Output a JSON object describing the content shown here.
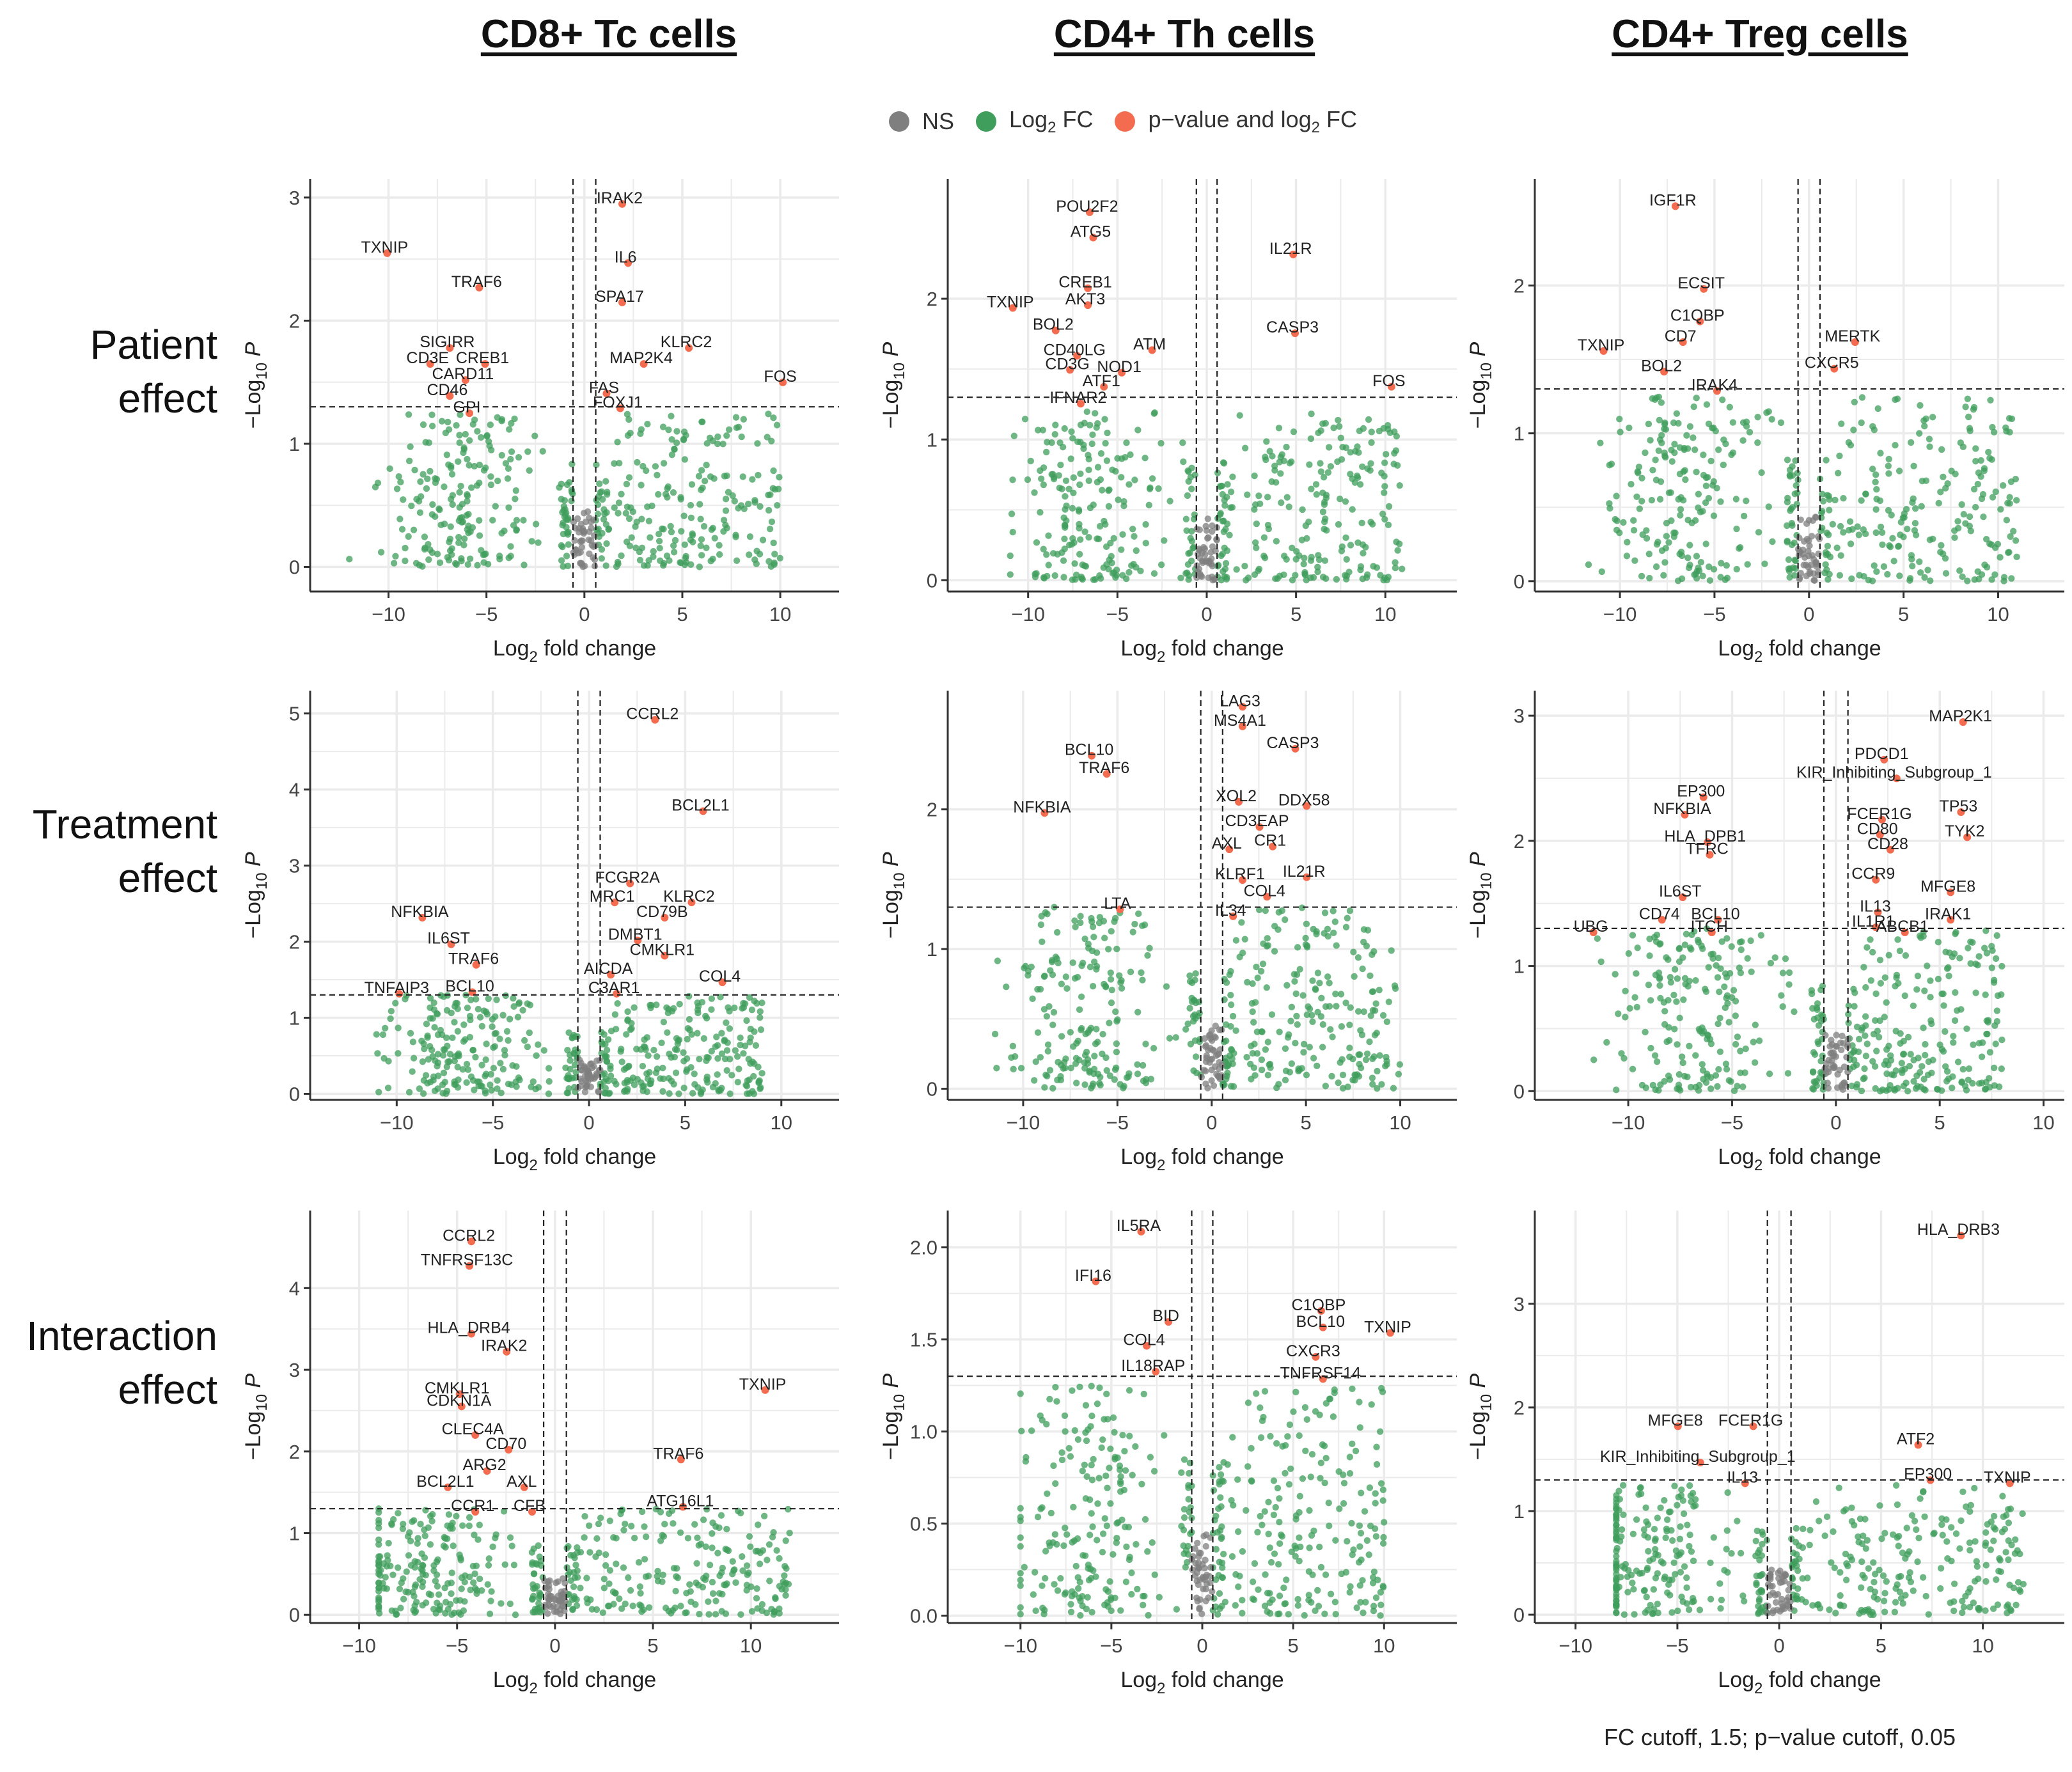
{
  "column_titles": [
    "CD8+ Tc cells",
    "CD4+ Th cells",
    "CD4+ Treg cells"
  ],
  "row_labels": [
    [
      "Patient",
      "effect"
    ],
    [
      "Treatment",
      "effect"
    ],
    [
      "Interaction",
      "effect"
    ]
  ],
  "legend": [
    {
      "label": "NS",
      "color": "#7f7f7f"
    },
    {
      "label": "Log2 FC",
      "color": "#3f9e5c"
    },
    {
      "label": "p-value and log2 FC",
      "color": "#f36c4f"
    }
  ],
  "legend_text": {
    "ns": "NS",
    "log": "Log",
    "two": "2",
    "fc": " FC",
    "pv": "p−value and log",
    "pv_fc": " FC"
  },
  "caption": "FC cutoff, 1.5; p−value cutoff, 0.05",
  "colors": {
    "ns": "#7f7f7f",
    "fc": "#3f9e5c",
    "sig": "#f36c4f",
    "grid": "#ebebeb",
    "axis": "#333333"
  },
  "chart_data": [
    {
      "type": "scatter",
      "panel": "CD8+ Tc cells - Patient effect",
      "xlabel": "Log2 fold change",
      "ylabel": "-Log10 P",
      "xlim": [
        -14,
        13
      ],
      "ylim": [
        -0.2,
        3.15
      ],
      "xticks": [
        -10,
        -5,
        0,
        5,
        10
      ],
      "yticks": [
        0,
        1,
        2,
        3
      ],
      "fc_cutoff": 0.58,
      "p_threshold": 1.3,
      "seed": 11,
      "bg_ymax": 1.25,
      "bg_xrange": [
        -12,
        10
      ],
      "labels": [
        {
          "gene": "IRAK2",
          "x": 1.8,
          "y": 3.0
        },
        {
          "gene": "TXNIP",
          "x": -10.2,
          "y": 2.6
        },
        {
          "gene": "IL6",
          "x": 2.1,
          "y": 2.52
        },
        {
          "gene": "TRAF6",
          "x": -5.5,
          "y": 2.32
        },
        {
          "gene": "SPA17",
          "x": 1.8,
          "y": 2.2
        },
        {
          "gene": "SIGIRR",
          "x": -7.0,
          "y": 1.83
        },
        {
          "gene": "KLRC2",
          "x": 5.2,
          "y": 1.83
        },
        {
          "gene": "CD3E",
          "x": -8.0,
          "y": 1.7
        },
        {
          "gene": "CREB1",
          "x": -5.2,
          "y": 1.7
        },
        {
          "gene": "MAP2K4",
          "x": 2.9,
          "y": 1.7
        },
        {
          "gene": "CARD11",
          "x": -6.2,
          "y": 1.57
        },
        {
          "gene": "FOS",
          "x": 10.0,
          "y": 1.55
        },
        {
          "gene": "CD46",
          "x": -7.0,
          "y": 1.44
        },
        {
          "gene": "FAS",
          "x": 1.0,
          "y": 1.46
        },
        {
          "gene": "FOXJ1",
          "x": 1.7,
          "y": 1.34
        },
        {
          "gene": "GPI",
          "x": -6.0,
          "y": 1.3
        }
      ]
    },
    {
      "type": "scatter",
      "panel": "CD4+ Th cells - Patient effect",
      "xlabel": "Log2 fold change",
      "ylabel": "-Log10 P",
      "xlim": [
        -14.5,
        14
      ],
      "ylim": [
        -0.08,
        2.85
      ],
      "xticks": [
        -10,
        -5,
        0,
        5,
        10
      ],
      "yticks": [
        0,
        1,
        2
      ],
      "fc_cutoff": 0.58,
      "p_threshold": 1.3,
      "seed": 23,
      "bg_ymax": 1.2,
      "bg_xrange": [
        -11,
        11
      ],
      "labels": [
        {
          "gene": "POU2F2",
          "x": -6.7,
          "y": 2.66
        },
        {
          "gene": "ATG5",
          "x": -6.5,
          "y": 2.48
        },
        {
          "gene": "IL21R",
          "x": 4.7,
          "y": 2.36
        },
        {
          "gene": "CREB1",
          "x": -6.8,
          "y": 2.12
        },
        {
          "gene": "AKT3",
          "x": -6.8,
          "y": 2.0
        },
        {
          "gene": "TXNIP",
          "x": -11.0,
          "y": 1.98
        },
        {
          "gene": "BOL2",
          "x": -8.6,
          "y": 1.82
        },
        {
          "gene": "CASP3",
          "x": 4.8,
          "y": 1.8
        },
        {
          "gene": "ATM",
          "x": -3.2,
          "y": 1.68
        },
        {
          "gene": "CD40LG",
          "x": -7.4,
          "y": 1.64
        },
        {
          "gene": "CD3G",
          "x": -7.8,
          "y": 1.54
        },
        {
          "gene": "NOD1",
          "x": -4.9,
          "y": 1.52
        },
        {
          "gene": "ATF1",
          "x": -5.9,
          "y": 1.42
        },
        {
          "gene": "FOS",
          "x": 10.2,
          "y": 1.42
        },
        {
          "gene": "IFNAR2",
          "x": -7.2,
          "y": 1.3
        }
      ]
    },
    {
      "type": "scatter",
      "panel": "CD4+ Treg cells - Patient effect",
      "xlabel": "Log2 fold change",
      "ylabel": "-Log10 P",
      "xlim": [
        -14.5,
        13.5
      ],
      "ylim": [
        -0.07,
        2.72
      ],
      "xticks": [
        -10,
        -5,
        0,
        5,
        10
      ],
      "yticks": [
        0,
        1,
        2
      ],
      "fc_cutoff": 0.58,
      "p_threshold": 1.3,
      "seed": 37,
      "bg_ymax": 1.25,
      "bg_xrange": [
        -12,
        11
      ],
      "labels": [
        {
          "gene": "IGF1R",
          "x": -7.2,
          "y": 2.58
        },
        {
          "gene": "ECSIT",
          "x": -5.7,
          "y": 2.02
        },
        {
          "gene": "C1QBP",
          "x": -5.9,
          "y": 1.8
        },
        {
          "gene": "CD7",
          "x": -6.8,
          "y": 1.66
        },
        {
          "gene": "TXNIP",
          "x": -11.0,
          "y": 1.6
        },
        {
          "gene": "MERTK",
          "x": 2.3,
          "y": 1.66
        },
        {
          "gene": "BOL2",
          "x": -7.8,
          "y": 1.46
        },
        {
          "gene": "CXCR5",
          "x": 1.2,
          "y": 1.48
        },
        {
          "gene": "IRAK4",
          "x": -5.0,
          "y": 1.33
        }
      ]
    },
    {
      "type": "scatter",
      "panel": "CD8+ Tc cells - Treatment effect",
      "xlabel": "Log2 fold change",
      "ylabel": "-Log10 P",
      "xlim": [
        -14.5,
        13
      ],
      "ylim": [
        -0.08,
        5.3
      ],
      "xticks": [
        -10,
        -5,
        0,
        5,
        10
      ],
      "yticks": [
        0,
        1,
        2,
        3,
        4,
        5
      ],
      "fc_cutoff": 0.58,
      "p_threshold": 1.3,
      "seed": 41,
      "bg_ymax": 1.3,
      "bg_xrange": [
        -12,
        9
      ],
      "labels": [
        {
          "gene": "CCRL2",
          "x": 3.3,
          "y": 5.0
        },
        {
          "gene": "BCL2L1",
          "x": 5.8,
          "y": 3.8
        },
        {
          "gene": "FCGR2A",
          "x": 2.0,
          "y": 2.85
        },
        {
          "gene": "MRC1",
          "x": 1.2,
          "y": 2.6
        },
        {
          "gene": "KLRC2",
          "x": 5.2,
          "y": 2.6
        },
        {
          "gene": "CD79B",
          "x": 3.8,
          "y": 2.4
        },
        {
          "gene": "NFKBIA",
          "x": -8.8,
          "y": 2.4
        },
        {
          "gene": "IL6ST",
          "x": -7.3,
          "y": 2.05
        },
        {
          "gene": "DMBT1",
          "x": 2.4,
          "y": 2.1
        },
        {
          "gene": "CMKLR1",
          "x": 3.8,
          "y": 1.9
        },
        {
          "gene": "TRAF6",
          "x": -6.0,
          "y": 1.78
        },
        {
          "gene": "AICDA",
          "x": 1.0,
          "y": 1.65
        },
        {
          "gene": "COL4",
          "x": 6.8,
          "y": 1.55
        },
        {
          "gene": "TNFAIP3",
          "x": -10.0,
          "y": 1.4
        },
        {
          "gene": "BCL10",
          "x": -6.2,
          "y": 1.42
        },
        {
          "gene": "C3AR1",
          "x": 1.3,
          "y": 1.4
        }
      ]
    },
    {
      "type": "scatter",
      "panel": "CD4+ Th cells - Treatment effect",
      "xlabel": "Log2 fold change",
      "ylabel": "-Log10 P",
      "xlim": [
        -14,
        13
      ],
      "ylim": [
        -0.08,
        2.85
      ],
      "xticks": [
        -10,
        -5,
        0,
        5,
        10
      ],
      "yticks": [
        0,
        1,
        2
      ],
      "fc_cutoff": 0.58,
      "p_threshold": 1.3,
      "seed": 53,
      "bg_ymax": 1.3,
      "bg_xrange": [
        -12,
        10
      ],
      "labels": [
        {
          "gene": "LAG3",
          "x": 1.5,
          "y": 2.78
        },
        {
          "gene": "MS4A1",
          "x": 1.5,
          "y": 2.64
        },
        {
          "gene": "CASP3",
          "x": 4.3,
          "y": 2.48
        },
        {
          "gene": "BCL10",
          "x": -6.5,
          "y": 2.43
        },
        {
          "gene": "TRAF6",
          "x": -5.7,
          "y": 2.3
        },
        {
          "gene": "XOL2",
          "x": 1.3,
          "y": 2.1
        },
        {
          "gene": "DDX58",
          "x": 4.9,
          "y": 2.07
        },
        {
          "gene": "NFKBIA",
          "x": -9.0,
          "y": 2.02
        },
        {
          "gene": "CD3EAP",
          "x": 2.4,
          "y": 1.92
        },
        {
          "gene": "AXL",
          "x": 0.8,
          "y": 1.76
        },
        {
          "gene": "CR1",
          "x": 3.1,
          "y": 1.78
        },
        {
          "gene": "KLRF1",
          "x": 1.5,
          "y": 1.54
        },
        {
          "gene": "IL21R",
          "x": 4.9,
          "y": 1.56
        },
        {
          "gene": "COL4",
          "x": 2.8,
          "y": 1.42
        },
        {
          "gene": "LTA",
          "x": -5.0,
          "y": 1.33
        },
        {
          "gene": "IL34",
          "x": 1.0,
          "y": 1.28
        }
      ]
    },
    {
      "type": "scatter",
      "panel": "CD4+ Treg cells - Treatment effect",
      "xlabel": "Log2 fold change",
      "ylabel": "-Log10 P",
      "xlim": [
        -14.5,
        11
      ],
      "ylim": [
        -0.07,
        3.2
      ],
      "xticks": [
        -10,
        -5,
        0,
        5,
        10
      ],
      "yticks": [
        0,
        1,
        2,
        3
      ],
      "fc_cutoff": 0.58,
      "p_threshold": 1.3,
      "seed": 67,
      "bg_ymax": 1.3,
      "bg_xrange": [
        -12,
        8
      ],
      "labels": [
        {
          "gene": "MAP2K1",
          "x": 6.0,
          "y": 3.0
        },
        {
          "gene": "PDCD1",
          "x": 2.2,
          "y": 2.7
        },
        {
          "gene": "KIR_Inhibiting_Subgroup_1",
          "x": 2.8,
          "y": 2.55
        },
        {
          "gene": "EP300",
          "x": -6.5,
          "y": 2.4
        },
        {
          "gene": "TP53",
          "x": 5.9,
          "y": 2.28
        },
        {
          "gene": "NFKBIA",
          "x": -7.4,
          "y": 2.26
        },
        {
          "gene": "FCER1G",
          "x": 2.1,
          "y": 2.22
        },
        {
          "gene": "CD80",
          "x": 2.0,
          "y": 2.1
        },
        {
          "gene": "TYK2",
          "x": 6.2,
          "y": 2.08
        },
        {
          "gene": "HLA_DPB1",
          "x": -6.3,
          "y": 2.04
        },
        {
          "gene": "CD28",
          "x": 2.5,
          "y": 1.98
        },
        {
          "gene": "TFRC",
          "x": -6.2,
          "y": 1.94
        },
        {
          "gene": "CCR9",
          "x": 1.8,
          "y": 1.74
        },
        {
          "gene": "MFGE8",
          "x": 5.4,
          "y": 1.64
        },
        {
          "gene": "IL6ST",
          "x": -7.5,
          "y": 1.6
        },
        {
          "gene": "IL13",
          "x": 1.9,
          "y": 1.48
        },
        {
          "gene": "CD74",
          "x": -8.5,
          "y": 1.42
        },
        {
          "gene": "BCL10",
          "x": -5.8,
          "y": 1.42
        },
        {
          "gene": "IRAK1",
          "x": 5.4,
          "y": 1.42
        },
        {
          "gene": "IL1R1",
          "x": 1.8,
          "y": 1.36
        },
        {
          "gene": "UBG",
          "x": -11.8,
          "y": 1.32
        },
        {
          "gene": "ITCH",
          "x": -6.1,
          "y": 1.32
        },
        {
          "gene": "ABCB1",
          "x": 3.2,
          "y": 1.32
        }
      ]
    },
    {
      "type": "scatter",
      "panel": "CD8+ Tc cells - Interaction effect",
      "xlabel": "Log2 fold change",
      "ylabel": "-Log10 P",
      "xlim": [
        -12.5,
        14.5
      ],
      "ylim": [
        -0.1,
        4.95
      ],
      "xticks": [
        -10,
        -5,
        0,
        5,
        10
      ],
      "yticks": [
        0,
        1,
        2,
        3,
        4
      ],
      "fc_cutoff": 0.58,
      "p_threshold": 1.3,
      "seed": 79,
      "bg_ymax": 1.3,
      "bg_xrange": [
        -9,
        12
      ],
      "labels": [
        {
          "gene": "CCRL2",
          "x": -4.4,
          "y": 4.65
        },
        {
          "gene": "TNFRSF13C",
          "x": -4.5,
          "y": 4.35
        },
        {
          "gene": "HLA_DRB4",
          "x": -4.4,
          "y": 3.52
        },
        {
          "gene": "IRAK2",
          "x": -2.6,
          "y": 3.3
        },
        {
          "gene": "TXNIP",
          "x": 10.6,
          "y": 2.83
        },
        {
          "gene": "CMKLR1",
          "x": -5.0,
          "y": 2.78
        },
        {
          "gene": "CDKN1A",
          "x": -4.9,
          "y": 2.63
        },
        {
          "gene": "CLEC4A",
          "x": -4.2,
          "y": 2.28
        },
        {
          "gene": "CD70",
          "x": -2.5,
          "y": 2.1
        },
        {
          "gene": "TRAF6",
          "x": 6.3,
          "y": 1.98
        },
        {
          "gene": "ARG2",
          "x": -3.6,
          "y": 1.84
        },
        {
          "gene": "BCL2L1",
          "x": -5.6,
          "y": 1.64
        },
        {
          "gene": "AXL",
          "x": -1.7,
          "y": 1.64
        },
        {
          "gene": "ATG16L1",
          "x": 6.4,
          "y": 1.4
        },
        {
          "gene": "CCR1",
          "x": -4.2,
          "y": 1.34
        },
        {
          "gene": "CFB",
          "x": -1.3,
          "y": 1.34
        }
      ]
    },
    {
      "type": "scatter",
      "panel": "CD4+ Th cells - Interaction effect",
      "xlabel": "Log2 fold change",
      "ylabel": "-Log10 P",
      "xlim": [
        -14,
        14
      ],
      "ylim": [
        -0.04,
        2.2
      ],
      "xticks": [
        -10,
        -5,
        0,
        5,
        10
      ],
      "yticks": [
        0.0,
        0.5,
        1.0,
        1.5,
        2.0
      ],
      "fc_cutoff": 0.58,
      "p_threshold": 1.3,
      "seed": 97,
      "bg_ymax": 1.25,
      "bg_xrange": [
        -10,
        10
      ],
      "labels": [
        {
          "gene": "IL5RA",
          "x": -3.5,
          "y": 2.12
        },
        {
          "gene": "IFI16",
          "x": -6.0,
          "y": 1.85
        },
        {
          "gene": "C1QBP",
          "x": 6.4,
          "y": 1.69
        },
        {
          "gene": "BCL10",
          "x": 6.5,
          "y": 1.6
        },
        {
          "gene": "TXNIP",
          "x": 10.2,
          "y": 1.57
        },
        {
          "gene": "BID",
          "x": -2.0,
          "y": 1.63
        },
        {
          "gene": "COL4",
          "x": -3.2,
          "y": 1.5
        },
        {
          "gene": "CXCR3",
          "x": 6.1,
          "y": 1.44
        },
        {
          "gene": "IL18RAP",
          "x": -2.7,
          "y": 1.36
        },
        {
          "gene": "TNFRSF14",
          "x": 6.5,
          "y": 1.32
        }
      ]
    },
    {
      "type": "scatter",
      "panel": "CD4+ Treg cells - Interaction effect",
      "xlabel": "Log2 fold change",
      "ylabel": "-Log10 P",
      "xlim": [
        -12,
        14
      ],
      "ylim": [
        -0.08,
        3.9
      ],
      "xticks": [
        -10,
        -5,
        0,
        5,
        10
      ],
      "yticks": [
        0,
        1,
        2,
        3
      ],
      "fc_cutoff": 0.58,
      "p_threshold": 1.3,
      "seed": 113,
      "bg_ymax": 1.25,
      "bg_xrange": [
        -8,
        12
      ],
      "labels": [
        {
          "gene": "HLA_DRB3",
          "x": 8.8,
          "y": 3.72
        },
        {
          "gene": "MFGE8",
          "x": -5.1,
          "y": 1.88
        },
        {
          "gene": "FCER1G",
          "x": -1.4,
          "y": 1.88
        },
        {
          "gene": "ATF2",
          "x": 6.7,
          "y": 1.7
        },
        {
          "gene": "KIR_Inhibiting_Subgroup_1",
          "x": -4.0,
          "y": 1.53
        },
        {
          "gene": "EP300",
          "x": 7.3,
          "y": 1.36
        },
        {
          "gene": "TXNIP",
          "x": 11.2,
          "y": 1.33
        },
        {
          "gene": "IL13",
          "x": -1.8,
          "y": 1.33
        }
      ]
    }
  ]
}
